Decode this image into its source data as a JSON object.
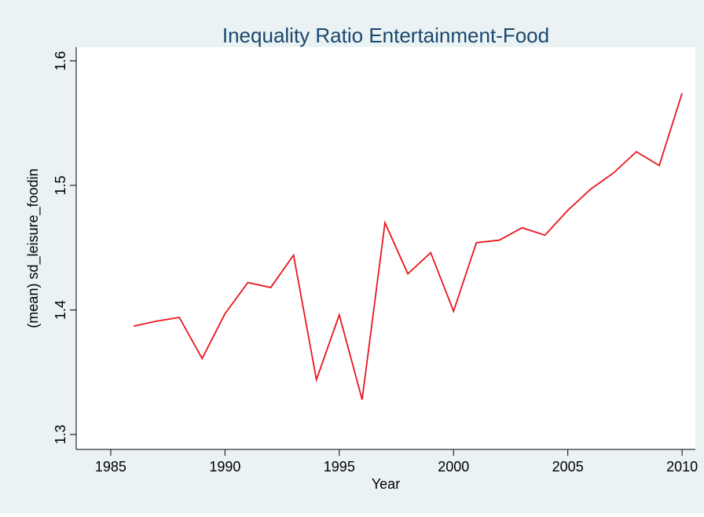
{
  "chart_data": {
    "type": "line",
    "title": "Inequality Ratio Entertainment-Food",
    "x_label": "Year",
    "y_label": "(mean) sd_leisure_foodin",
    "x": [
      1986,
      1987,
      1988,
      1989,
      1990,
      1991,
      1992,
      1993,
      1994,
      1995,
      1996,
      1997,
      1998,
      1999,
      2000,
      2001,
      2002,
      2003,
      2004,
      2005,
      2006,
      2007,
      2008,
      2009,
      2010
    ],
    "series": [
      {
        "name": "(mean) sd_leisure_foodin",
        "color": "#e8161d",
        "values": [
          1.387,
          1.391,
          1.394,
          1.361,
          1.397,
          1.422,
          1.418,
          1.444,
          1.344,
          1.396,
          1.328,
          1.47,
          1.429,
          1.446,
          1.399,
          1.454,
          1.456,
          1.466,
          1.46,
          1.48,
          1.497,
          1.51,
          1.527,
          1.516,
          1.574
        ]
      }
    ],
    "xlim": [
      1983.49,
      2010.58
    ],
    "xticks": [
      1985,
      1990,
      1995,
      2000,
      2005,
      2010
    ],
    "ylim": [
      1.288,
      1.611
    ],
    "yticks": [
      {
        "value": 1.3,
        "label": "1.3"
      },
      {
        "value": 1.4,
        "label": "1.4"
      },
      {
        "value": 1.5,
        "label": "1.5"
      },
      {
        "value": 1.6,
        "label": "1.6"
      }
    ],
    "grid": false
  }
}
